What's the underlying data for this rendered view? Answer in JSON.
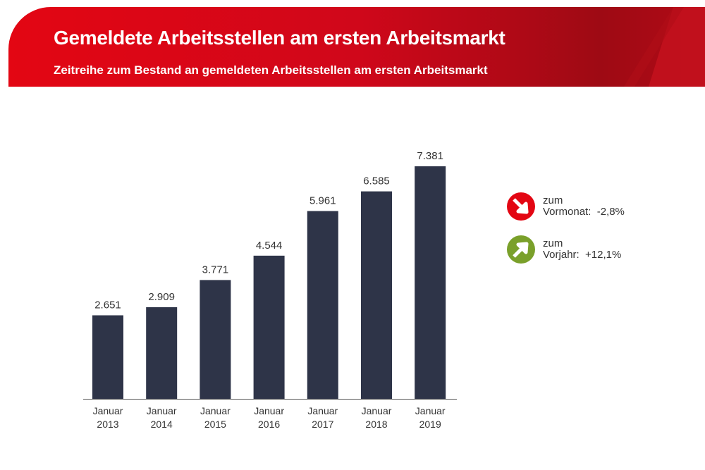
{
  "header": {
    "title": "Gemeldete Arbeitsstellen am ersten Arbeitsmarkt",
    "subtitle": "Zeitreihe zum Bestand an gemeldeten Arbeitsstellen am ersten Arbeitsmarkt"
  },
  "chart_data": {
    "type": "bar",
    "categories": [
      [
        "Januar",
        "2013"
      ],
      [
        "Januar",
        "2014"
      ],
      [
        "Januar",
        "2015"
      ],
      [
        "Januar",
        "2016"
      ],
      [
        "Januar",
        "2017"
      ],
      [
        "Januar",
        "2018"
      ],
      [
        "Januar",
        "2019"
      ]
    ],
    "values": [
      2651,
      2909,
      3771,
      4544,
      5961,
      6585,
      7381
    ],
    "labels": [
      "2.651",
      "2.909",
      "3.771",
      "4.544",
      "5.961",
      "6.585",
      "7.381"
    ],
    "ylim": [
      0,
      7381
    ],
    "grid": false,
    "bar_color": "#2e3448"
  },
  "indicators": [
    {
      "line1": "zum",
      "line2": "Vormonat:  -2,8%",
      "direction": "down",
      "icon": "arrow-down-right-icon",
      "color": "#e30613"
    },
    {
      "line1": "zum",
      "line2": "Vorjahr:  +12,1%",
      "direction": "up",
      "icon": "arrow-up-right-icon",
      "color": "#7aa02a"
    }
  ]
}
